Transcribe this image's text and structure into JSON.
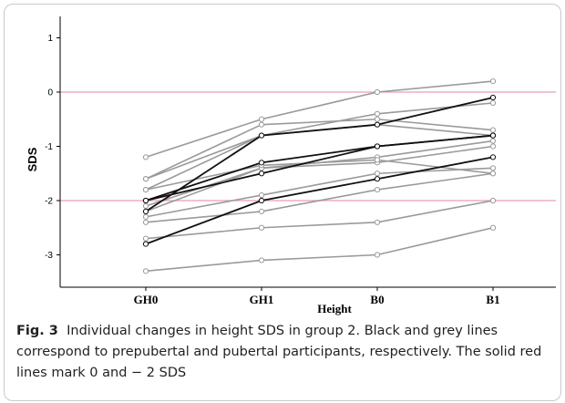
{
  "caption": {
    "label": "Fig. 3",
    "text": "Individual changes in height SDS in group 2. Black and grey lines correspond to prepubertal and pubertal participants, respectively. The solid red lines mark 0 and − 2 SDS"
  },
  "chart_data": {
    "type": "line",
    "title": "",
    "xlabel": "Height",
    "ylabel": "SDS",
    "categories": [
      "GH0",
      "GH1",
      "B0",
      "B1"
    ],
    "yticks": [
      1,
      0,
      -1,
      -2,
      -3
    ],
    "ylim": [
      -3.5,
      1.3
    ],
    "grid": false,
    "reference_lines": [
      0,
      -2
    ],
    "colors": {
      "prepubertal": "#111111",
      "pubertal": "#9a9a9a",
      "reference": "#e8a0b0"
    },
    "series": [
      {
        "group": "pubertal",
        "values": [
          -1.2,
          -0.5,
          0.0,
          0.2
        ]
      },
      {
        "group": "pubertal",
        "values": [
          -1.6,
          -0.6,
          -0.5,
          -0.7
        ]
      },
      {
        "group": "pubertal",
        "values": [
          -1.8,
          -0.8,
          -0.4,
          -0.2
        ]
      },
      {
        "group": "pubertal",
        "values": [
          -1.6,
          -0.8,
          -0.6,
          -0.8
        ]
      },
      {
        "group": "pubertal",
        "values": [
          -2.1,
          -1.4,
          -1.2,
          -0.9
        ]
      },
      {
        "group": "pubertal",
        "values": [
          -2.2,
          -1.4,
          -1.3,
          -1.0
        ]
      },
      {
        "group": "pubertal",
        "values": [
          -1.8,
          -1.35,
          -1.25,
          -1.5
        ]
      },
      {
        "group": "pubertal",
        "values": [
          -2.3,
          -1.9,
          -1.5,
          -1.4
        ]
      },
      {
        "group": "pubertal",
        "values": [
          -2.4,
          -2.2,
          -1.8,
          -1.5
        ]
      },
      {
        "group": "pubertal",
        "values": [
          -2.7,
          -2.5,
          -2.4,
          -2.0
        ]
      },
      {
        "group": "pubertal",
        "values": [
          -3.3,
          -3.1,
          -3.0,
          -2.5
        ]
      },
      {
        "group": "prepubertal",
        "values": [
          -2.2,
          -0.8,
          -0.6,
          -0.1
        ]
      },
      {
        "group": "prepubertal",
        "values": [
          -2.0,
          -1.3,
          -1.0,
          -0.8
        ]
      },
      {
        "group": "prepubertal",
        "values": [
          -2.0,
          -1.5,
          -1.0,
          -0.8
        ]
      },
      {
        "group": "prepubertal",
        "values": [
          -2.8,
          -2.0,
          -1.6,
          -1.2
        ]
      }
    ]
  }
}
